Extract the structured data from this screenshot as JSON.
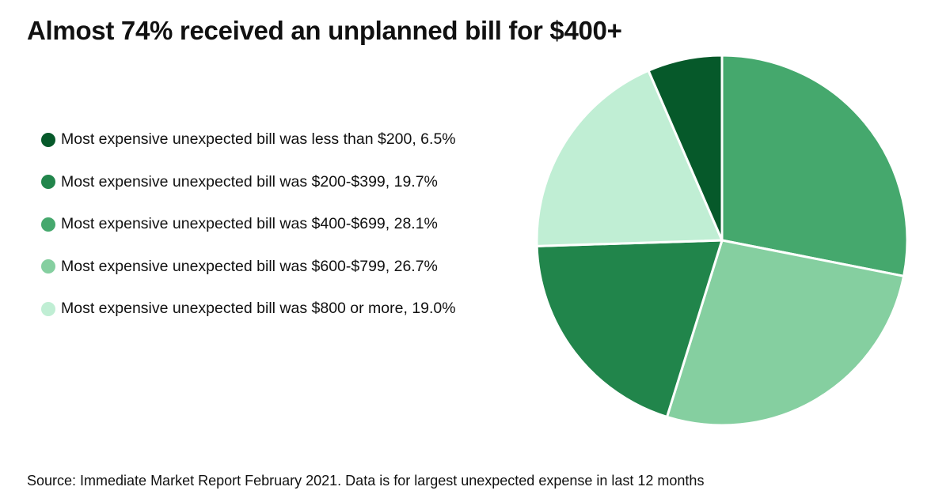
{
  "title": "Almost 74% received an unplanned bill for $400+",
  "source": "Source: Immediate Market Report February 2021. Data is for largest unexpected expense in last 12 months",
  "chart_data": {
    "type": "pie",
    "title": "Almost 74% received an unplanned bill for $400+",
    "legend_position": "left",
    "slices": [
      {
        "label": "Most expensive unexpected bill was less than $200, 6.5%",
        "category": "less than $200",
        "value": 6.5,
        "color": "#06592a"
      },
      {
        "label": "Most expensive unexpected bill was $200-$399, 19.7%",
        "category": "$200-$399",
        "value": 19.7,
        "color": "#21854b"
      },
      {
        "label": "Most expensive unexpected bill was $400-$699, 28.1%",
        "category": "$400-$699",
        "value": 28.1,
        "color": "#45a86d"
      },
      {
        "label": "Most expensive unexpected bill was $600-$799, 26.7%",
        "category": "$600-$799",
        "value": 26.7,
        "color": "#85cfa0"
      },
      {
        "label": "Most expensive unexpected bill was $800 or more, 19.0%",
        "category": "$800 or more",
        "value": 19.0,
        "color": "#c0eed4"
      }
    ],
    "draw_order": [
      2,
      3,
      1,
      4,
      0
    ]
  }
}
